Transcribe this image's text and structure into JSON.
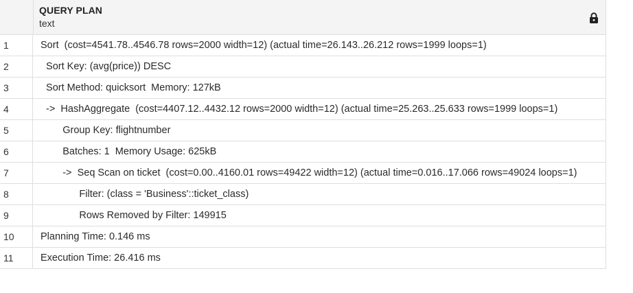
{
  "header": {
    "column_name": "QUERY PLAN",
    "column_type": "text",
    "lock_icon": "lock-icon"
  },
  "rows": [
    {
      "num": "1",
      "text": "Sort  (cost=4541.78..4546.78 rows=2000 width=12) (actual time=26.143..26.212 rows=1999 loops=1)"
    },
    {
      "num": "2",
      "text": "  Sort Key: (avg(price)) DESC"
    },
    {
      "num": "3",
      "text": "  Sort Method: quicksort  Memory: 127kB"
    },
    {
      "num": "4",
      "text": "  ->  HashAggregate  (cost=4407.12..4432.12 rows=2000 width=12) (actual time=25.263..25.633 rows=1999 loops=1)"
    },
    {
      "num": "5",
      "text": "        Group Key: flightnumber"
    },
    {
      "num": "6",
      "text": "        Batches: 1  Memory Usage: 625kB"
    },
    {
      "num": "7",
      "text": "        ->  Seq Scan on ticket  (cost=0.00..4160.01 rows=49422 width=12) (actual time=0.016..17.066 rows=49024 loops=1)"
    },
    {
      "num": "8",
      "text": "              Filter: (class = 'Business'::ticket_class)"
    },
    {
      "num": "9",
      "text": "              Rows Removed by Filter: 149915"
    },
    {
      "num": "10",
      "text": "Planning Time: 0.146 ms"
    },
    {
      "num": "11",
      "text": "Execution Time: 26.416 ms"
    }
  ]
}
